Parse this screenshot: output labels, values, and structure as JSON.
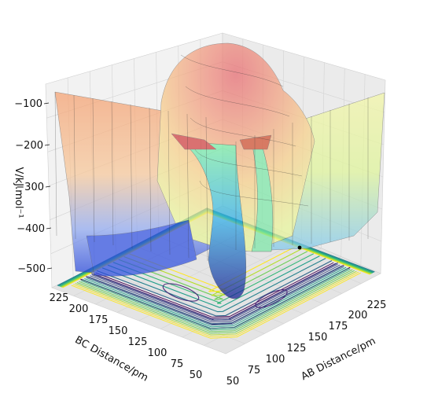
{
  "chart_data": {
    "type": "surface3d",
    "title": "",
    "xlabel": "AB Distance/pm",
    "ylabel": "BC Distance/pm",
    "zlabel": "V/kJ.mol⁻¹",
    "xticks": [
      "50",
      "75",
      "100",
      "125",
      "150",
      "175",
      "200",
      "225"
    ],
    "yticks": [
      "50",
      "75",
      "100",
      "125",
      "150",
      "175",
      "200",
      "225"
    ],
    "zticks": [
      "−100",
      "−200",
      "−300",
      "−400",
      "−500"
    ],
    "xlim": [
      50,
      240
    ],
    "ylim": [
      50,
      240
    ],
    "zlim": [
      -560,
      -60
    ],
    "grid": true,
    "surface_colormap": "jet (translucent)",
    "contour_colormap": "viridis",
    "contour_plane": "floor",
    "marker": {
      "x": 125,
      "y": 190,
      "color": "#000000"
    }
  }
}
